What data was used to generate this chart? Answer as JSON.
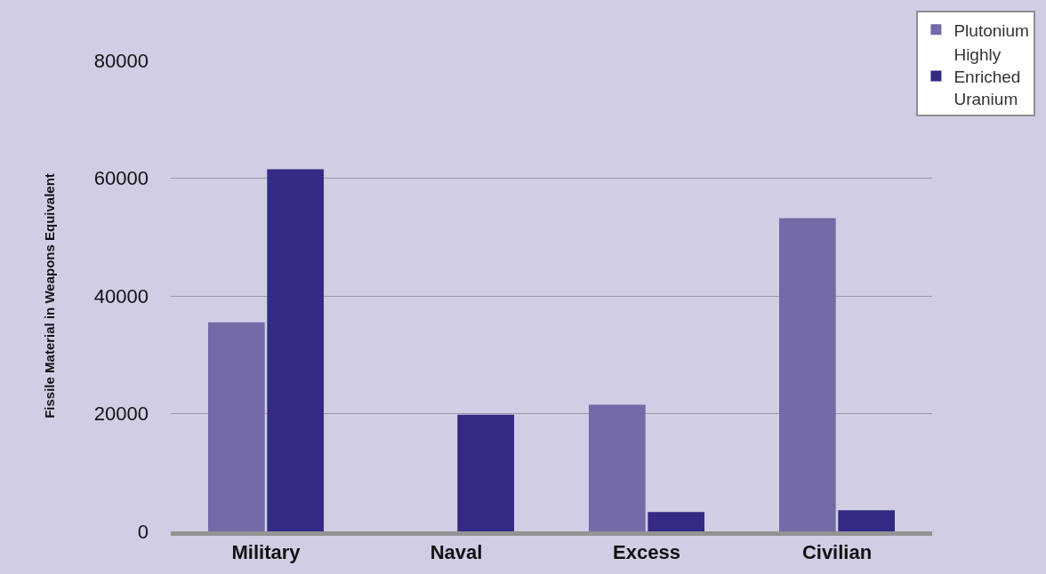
{
  "chart_data": {
    "type": "bar",
    "ylabel": "Fissile Material in Weapons Equivalent",
    "categories": [
      "Military",
      "Naval",
      "Excess",
      "Civilian"
    ],
    "series": [
      {
        "name": "Plutonium",
        "color": "#746aa8",
        "values": [
          35500,
          0,
          21500,
          53200
        ]
      },
      {
        "name": "Highly Enriched Uranium",
        "color": "#322a83",
        "values": [
          61500,
          19800,
          3300,
          3600
        ]
      }
    ],
    "ylim": [
      0,
      80000
    ],
    "yticks": [
      0,
      20000,
      40000,
      60000,
      80000
    ],
    "grid": "y",
    "legend": "top right"
  }
}
